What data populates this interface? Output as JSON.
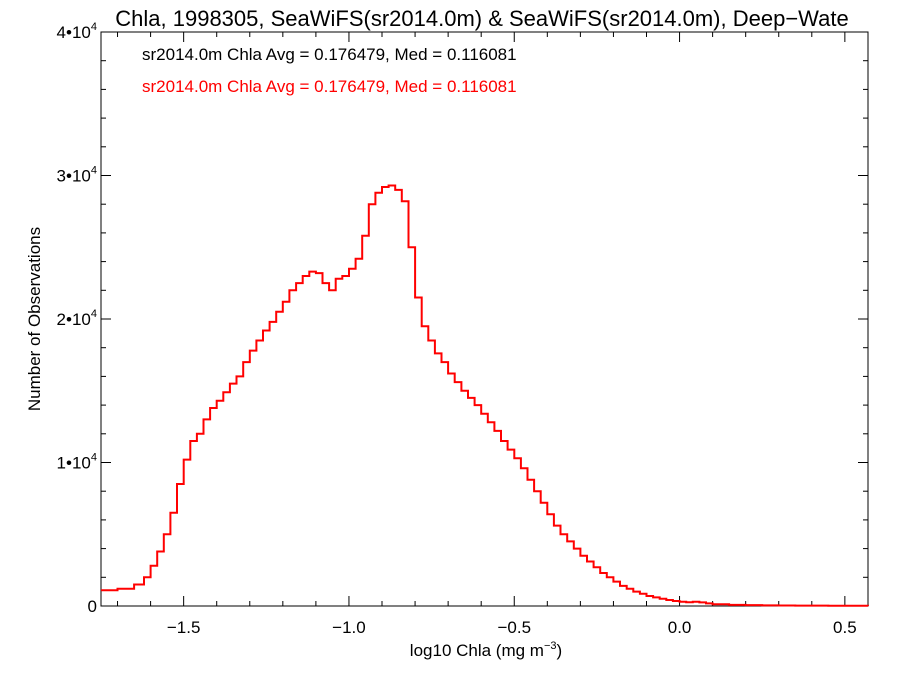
{
  "chart_data": {
    "type": "line",
    "title": "Chla, 1998305, SeaWiFS(sr2014.0m) & SeaWiFS(sr2014.0m), Deep−Wate",
    "xlabel": "log10 Chla (mg m",
    "xlabel_exponent": "−3",
    "xlabel_suffix": ")",
    "ylabel": "Number of Observations",
    "xlim": [
      -1.75,
      0.57
    ],
    "ylim": [
      0,
      40000
    ],
    "x_ticks": [
      {
        "value": -1.5,
        "label": "−1.5"
      },
      {
        "value": -1.0,
        "label": "−1.0"
      },
      {
        "value": -0.5,
        "label": "−0.5"
      },
      {
        "value": 0.0,
        "label": "0.0"
      },
      {
        "value": 0.5,
        "label": "0.5"
      }
    ],
    "y_ticks": [
      {
        "value": 0,
        "mantissa": "0",
        "exponent": ""
      },
      {
        "value": 10000,
        "mantissa": "1•10",
        "exponent": "4"
      },
      {
        "value": 20000,
        "mantissa": "2•10",
        "exponent": "4"
      },
      {
        "value": 30000,
        "mantissa": "3•10",
        "exponent": "4"
      },
      {
        "value": 40000,
        "mantissa": "4•10",
        "exponent": "4"
      }
    ],
    "legend": [
      {
        "text": "sr2014.0m Chla Avg = 0.176479, Med = 0.116081",
        "color": "#000000"
      },
      {
        "text": "sr2014.0m Chla Avg = 0.176479, Med = 0.116081",
        "color": "#ff0000"
      }
    ],
    "legend_position": "top-left",
    "series": [
      {
        "color": "#ff0000",
        "x": [
          -1.75,
          -1.7,
          -1.65,
          -1.62,
          -1.6,
          -1.58,
          -1.56,
          -1.54,
          -1.52,
          -1.5,
          -1.48,
          -1.46,
          -1.44,
          -1.42,
          -1.4,
          -1.38,
          -1.36,
          -1.34,
          -1.32,
          -1.3,
          -1.28,
          -1.26,
          -1.24,
          -1.22,
          -1.2,
          -1.18,
          -1.16,
          -1.14,
          -1.12,
          -1.1,
          -1.08,
          -1.06,
          -1.04,
          -1.02,
          -1.0,
          -0.98,
          -0.96,
          -0.94,
          -0.92,
          -0.9,
          -0.88,
          -0.86,
          -0.84,
          -0.82,
          -0.8,
          -0.78,
          -0.76,
          -0.74,
          -0.72,
          -0.7,
          -0.68,
          -0.66,
          -0.64,
          -0.62,
          -0.6,
          -0.58,
          -0.56,
          -0.54,
          -0.52,
          -0.5,
          -0.48,
          -0.46,
          -0.44,
          -0.42,
          -0.4,
          -0.38,
          -0.36,
          -0.34,
          -0.32,
          -0.3,
          -0.28,
          -0.26,
          -0.24,
          -0.22,
          -0.2,
          -0.18,
          -0.16,
          -0.14,
          -0.12,
          -0.1,
          -0.08,
          -0.06,
          -0.04,
          -0.02,
          0.0,
          0.02,
          0.04,
          0.06,
          0.08,
          0.1,
          0.15,
          0.2,
          0.25,
          0.3,
          0.35,
          0.4,
          0.45,
          0.5,
          0.57
        ],
        "y": [
          1100,
          1200,
          1500,
          2000,
          2800,
          3800,
          5000,
          6500,
          8500,
          10200,
          11500,
          12000,
          13000,
          13800,
          14300,
          14900,
          15500,
          16000,
          17000,
          17800,
          18500,
          19200,
          19800,
          20500,
          21200,
          22000,
          22500,
          23000,
          23300,
          23200,
          22500,
          22000,
          22800,
          23000,
          23500,
          24200,
          25800,
          28000,
          28800,
          29200,
          29300,
          29000,
          28200,
          25000,
          21500,
          19500,
          18500,
          17600,
          17000,
          16200,
          15600,
          15000,
          14500,
          14000,
          13400,
          12800,
          12200,
          11500,
          10900,
          10300,
          9600,
          8800,
          8000,
          7200,
          6400,
          5600,
          5000,
          4500,
          4000,
          3500,
          3100,
          2700,
          2300,
          2000,
          1700,
          1400,
          1200,
          1000,
          850,
          700,
          600,
          500,
          420,
          350,
          300,
          260,
          300,
          250,
          180,
          120,
          80,
          60,
          45,
          35,
          30,
          25,
          20,
          15,
          10
        ]
      }
    ]
  }
}
